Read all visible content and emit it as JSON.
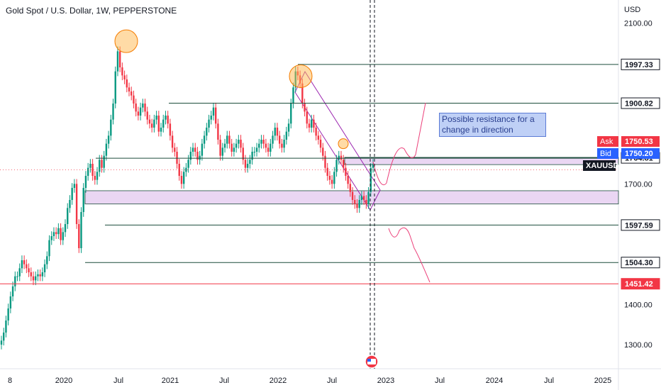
{
  "header": {
    "title": "Gold Spot / U.S. Dollar, 1W, PEPPERSTONE"
  },
  "annotation": {
    "text": "Possible resistance for a change in direction"
  },
  "colors": {
    "up": "#089981",
    "down": "#f23645",
    "level_line": "#1d4d3c",
    "support_line": "#f23645",
    "zone_fill": "#e8d2f2",
    "channel": "#9c27b0",
    "circle_fill": "#ffb74d",
    "projection": "#ec407a",
    "ask": "#f23645",
    "bid": "#2962ff"
  },
  "chart_data": {
    "type": "candlestick",
    "instrument": "XAUUSD",
    "timeframe": "1W",
    "currency": "USD",
    "ylim": [
      1240,
      2140
    ],
    "y_ticks": [
      1300,
      1400,
      1700,
      2100
    ],
    "y_tick_labels": [
      "1300.00",
      "1400.00",
      "1700.00",
      "2100.00"
    ],
    "x_ticks": [
      "8",
      "2020",
      "Jul",
      "2021",
      "Jul",
      "2022",
      "Jul",
      "2023",
      "Jul",
      "2024",
      "Jul",
      "2025"
    ],
    "levels": [
      {
        "label": "1997.33",
        "value": 1997.33,
        "style": "box"
      },
      {
        "label": "1900.82",
        "value": 1900.82,
        "style": "box"
      },
      {
        "label": "1764.81",
        "value": 1764.81,
        "style": "box"
      },
      {
        "label": "1597.59",
        "value": 1597.59,
        "style": "box"
      },
      {
        "label": "1504.30",
        "value": 1504.3,
        "style": "box"
      },
      {
        "label": "1451.42",
        "value": 1451.42,
        "style": "red"
      }
    ],
    "price_tags": [
      {
        "name": "Ask",
        "label": "1750.53",
        "value": 1750.53
      },
      {
        "name": "Bid",
        "label": "1750.20",
        "value": 1750.2
      },
      {
        "name": "XAUUSD",
        "label": "XAUUSD",
        "value": 1735
      }
    ],
    "zones": [
      {
        "from": 1650,
        "to": 1683
      },
      {
        "from": 1748,
        "to": 1766
      }
    ],
    "candle_closes": [
      1310,
      1330,
      1360,
      1390,
      1420,
      1445,
      1470,
      1470,
      1490,
      1510,
      1500,
      1490,
      1480,
      1470,
      1460,
      1470,
      1475,
      1470,
      1480,
      1500,
      1520,
      1560,
      1570,
      1580,
      1575,
      1590,
      1560,
      1580,
      1600,
      1640,
      1660,
      1690,
      1700,
      1600,
      1540,
      1630,
      1690,
      1720,
      1740,
      1750,
      1720,
      1710,
      1730,
      1760,
      1740,
      1770,
      1800,
      1820,
      1860,
      1900,
      1980,
      2030,
      1990,
      1970,
      1960,
      1940,
      1930,
      1920,
      1900,
      1880,
      1870,
      1890,
      1900,
      1880,
      1860,
      1850,
      1840,
      1860,
      1870,
      1830,
      1840,
      1860,
      1870,
      1850,
      1820,
      1790,
      1780,
      1750,
      1720,
      1700,
      1730,
      1740,
      1760,
      1780,
      1790,
      1780,
      1760,
      1770,
      1800,
      1820,
      1840,
      1860,
      1870,
      1890,
      1850,
      1810,
      1770,
      1790,
      1800,
      1820,
      1800,
      1780,
      1790,
      1800,
      1810,
      1790,
      1760,
      1740,
      1750,
      1760,
      1780,
      1780,
      1790,
      1800,
      1810,
      1800,
      1790,
      1780,
      1800,
      1820,
      1840,
      1820,
      1800,
      1790,
      1810,
      1830,
      1850,
      1900,
      1940,
      1980,
      1970,
      1950,
      1900,
      1880,
      1850,
      1840,
      1860,
      1840,
      1820,
      1810,
      1790,
      1770,
      1740,
      1720,
      1710,
      1700,
      1730,
      1760,
      1770,
      1760,
      1740,
      1720,
      1700,
      1680,
      1660,
      1650,
      1640,
      1660,
      1670,
      1660,
      1650,
      1680,
      1740,
      1750
    ]
  }
}
